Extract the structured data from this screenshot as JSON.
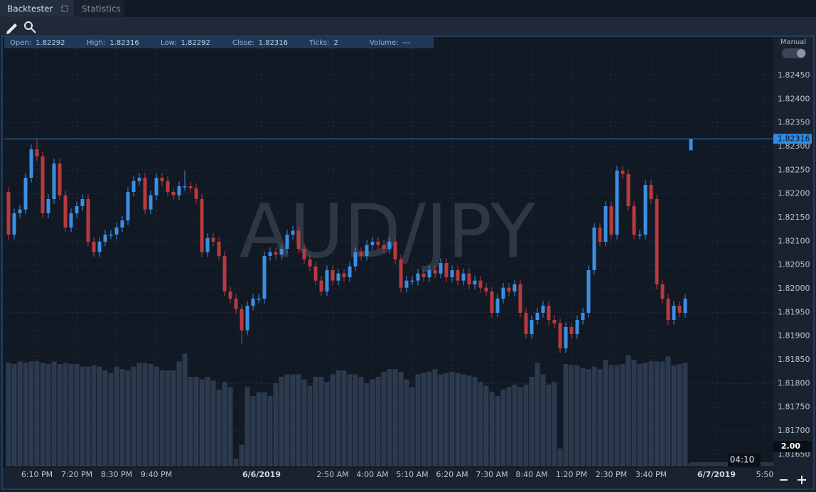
{
  "ui": {
    "tabs": [
      "Backtester",
      "Statistics"
    ],
    "mode": "Manual",
    "info_bar": [
      {
        "label": "Open:",
        "value": 1.82292
      },
      {
        "label": "High:",
        "value": 1.82316
      },
      {
        "label": "Low:",
        "value": 1.82292
      },
      {
        "label": "Close:",
        "value": 1.82316
      },
      {
        "label": "Ticks:",
        "value": 2
      },
      {
        "label": "Volume:",
        "value": "---"
      }
    ],
    "scale_box": "2.00",
    "countdown": "04:10"
  },
  "chart_data": {
    "type": "candlestick",
    "title": "AUD/JPY",
    "open": [
      1.82204,
      1.82114,
      1.82159,
      1.82167,
      1.82234,
      1.82294,
      1.82279,
      1.82159,
      1.82189,
      1.82264,
      1.82197,
      1.82129,
      1.82159,
      1.82174,
      1.82189,
      1.82099,
      1.82077,
      1.82099,
      1.82114,
      1.82114,
      1.82129,
      1.82144,
      1.82204,
      1.82227,
      1.82234,
      1.82167,
      1.82197,
      1.82234,
      1.82227,
      1.82204,
      1.82197,
      1.82216,
      1.82216,
      1.82212,
      1.82189,
      1.82077,
      1.82107,
      1.82099,
      1.82069,
      1.81994,
      1.81979,
      1.81957,
      1.81912,
      1.81964,
      1.81979,
      1.81979,
      1.82069,
      1.82077,
      1.82072,
      1.82084,
      1.82114,
      1.82122,
      1.82084,
      1.82062,
      1.82047,
      1.82017,
      1.81994,
      1.82039,
      1.82017,
      1.82032,
      1.82024,
      1.82047,
      1.82077,
      1.82069,
      1.82092,
      1.82099,
      1.82092,
      1.82084,
      1.82099,
      1.82062,
      1.82002,
      1.82017,
      1.82017,
      1.82032,
      1.82024,
      1.82039,
      1.82032,
      1.82054,
      1.82024,
      1.82039,
      1.82017,
      1.82032,
      1.82009,
      1.82017,
      1.82002,
      1.81994,
      1.81949,
      1.81979,
      1.82002,
      1.81994,
      1.82009,
      1.81949,
      1.81904,
      1.81934,
      1.81949,
      1.81964,
      1.81934,
      1.81927,
      1.81874,
      1.81919,
      1.81904,
      1.81934,
      1.81949,
      1.82039,
      1.82129,
      1.82099,
      1.82174,
      1.82114,
      1.82249,
      1.82242,
      1.82174,
      1.82114,
      1.82114,
      1.82219,
      1.82189,
      1.82009,
      1.81979,
      1.81934,
      1.81964,
      1.81949,
      1.82292
    ],
    "high": [
      1.82214,
      1.82169,
      1.82177,
      1.82244,
      1.82304,
      1.82316,
      1.82289,
      1.82199,
      1.82274,
      1.82274,
      1.82207,
      1.82169,
      1.82184,
      1.82199,
      1.82199,
      1.82109,
      1.82109,
      1.82124,
      1.82124,
      1.82139,
      1.82154,
      1.82214,
      1.82237,
      1.82244,
      1.82244,
      1.82207,
      1.82244,
      1.82244,
      1.82237,
      1.82214,
      1.82226,
      1.82249,
      1.82226,
      1.82222,
      1.82199,
      1.82117,
      1.82117,
      1.82109,
      1.82079,
      1.82004,
      1.81989,
      1.81967,
      1.81974,
      1.81989,
      1.81989,
      1.82079,
      1.82087,
      1.82087,
      1.82094,
      1.82124,
      1.82132,
      1.82132,
      1.82094,
      1.82072,
      1.82057,
      1.82027,
      1.82049,
      1.82049,
      1.82042,
      1.82042,
      1.82057,
      1.82087,
      1.82087,
      1.82102,
      1.82109,
      1.82109,
      1.82102,
      1.82109,
      1.82109,
      1.82072,
      1.82027,
      1.82027,
      1.82042,
      1.82042,
      1.82049,
      1.82049,
      1.82064,
      1.82064,
      1.82049,
      1.82049,
      1.82042,
      1.82042,
      1.82027,
      1.82027,
      1.82012,
      1.82004,
      1.81989,
      1.82012,
      1.82012,
      1.82019,
      1.82019,
      1.81959,
      1.81944,
      1.81959,
      1.81974,
      1.81974,
      1.81944,
      1.81937,
      1.81929,
      1.81929,
      1.81944,
      1.81959,
      1.82049,
      1.82139,
      1.82139,
      1.82184,
      1.82184,
      1.82259,
      1.82259,
      1.82252,
      1.82184,
      1.82124,
      1.82229,
      1.82229,
      1.82199,
      1.82019,
      1.81989,
      1.81974,
      1.81974,
      1.81989,
      1.82316
    ],
    "low": [
      1.82104,
      1.82104,
      1.82149,
      1.82157,
      1.82224,
      1.82269,
      1.82149,
      1.82149,
      1.82179,
      1.82187,
      1.82119,
      1.82119,
      1.82149,
      1.82164,
      1.82089,
      1.82067,
      1.82067,
      1.82089,
      1.82104,
      1.82104,
      1.82119,
      1.82134,
      1.82194,
      1.82217,
      1.82157,
      1.82157,
      1.82187,
      1.82217,
      1.82194,
      1.82187,
      1.82187,
      1.82206,
      1.82202,
      1.82179,
      1.82067,
      1.82067,
      1.82089,
      1.82059,
      1.81984,
      1.81969,
      1.81947,
      1.81882,
      1.81902,
      1.81954,
      1.81969,
      1.81969,
      1.82059,
      1.82062,
      1.82062,
      1.82074,
      1.82104,
      1.82074,
      1.82052,
      1.82037,
      1.82007,
      1.81984,
      1.81984,
      1.82007,
      1.82007,
      1.82014,
      1.82014,
      1.82037,
      1.82059,
      1.82059,
      1.82082,
      1.82082,
      1.82074,
      1.82074,
      1.82052,
      1.81992,
      1.81992,
      1.82007,
      1.82007,
      1.82014,
      1.82014,
      1.82022,
      1.82022,
      1.82014,
      1.82014,
      1.82007,
      1.82007,
      1.81999,
      1.81999,
      1.81992,
      1.81984,
      1.81939,
      1.81939,
      1.81969,
      1.81984,
      1.81984,
      1.81939,
      1.81894,
      1.81894,
      1.81924,
      1.81939,
      1.81924,
      1.81917,
      1.81864,
      1.81864,
      1.81894,
      1.81894,
      1.81924,
      1.81939,
      1.82029,
      1.82089,
      1.82089,
      1.82104,
      1.82104,
      1.82232,
      1.82164,
      1.82104,
      1.82104,
      1.82104,
      1.82179,
      1.81999,
      1.81969,
      1.81924,
      1.81924,
      1.81939,
      1.81939,
      1.82292
    ],
    "close": [
      1.82114,
      1.82159,
      1.82167,
      1.82234,
      1.82294,
      1.82279,
      1.82159,
      1.82189,
      1.82264,
      1.82197,
      1.82129,
      1.82159,
      1.82174,
      1.82189,
      1.82099,
      1.82077,
      1.82099,
      1.82114,
      1.82114,
      1.82129,
      1.82144,
      1.82204,
      1.82227,
      1.82234,
      1.82167,
      1.82197,
      1.82234,
      1.82227,
      1.82204,
      1.82197,
      1.82216,
      1.82216,
      1.82212,
      1.82189,
      1.82077,
      1.82107,
      1.82099,
      1.82069,
      1.81994,
      1.81979,
      1.81957,
      1.81912,
      1.81964,
      1.81979,
      1.81979,
      1.82069,
      1.82077,
      1.82072,
      1.82084,
      1.82114,
      1.82122,
      1.82084,
      1.82062,
      1.82047,
      1.82017,
      1.81994,
      1.82039,
      1.82017,
      1.82032,
      1.82024,
      1.82047,
      1.82077,
      1.82069,
      1.82092,
      1.82099,
      1.82092,
      1.82084,
      1.82099,
      1.82062,
      1.82002,
      1.82017,
      1.82017,
      1.82032,
      1.82024,
      1.82039,
      1.82032,
      1.82054,
      1.82024,
      1.82039,
      1.82017,
      1.82032,
      1.82009,
      1.82017,
      1.82002,
      1.81994,
      1.81949,
      1.81979,
      1.82002,
      1.81994,
      1.82009,
      1.81949,
      1.81904,
      1.81934,
      1.81949,
      1.81964,
      1.81934,
      1.81927,
      1.81874,
      1.81919,
      1.81904,
      1.81934,
      1.81949,
      1.82039,
      1.82129,
      1.82099,
      1.82174,
      1.82114,
      1.82249,
      1.82242,
      1.82174,
      1.82114,
      1.82114,
      1.82219,
      1.82189,
      1.82009,
      1.81979,
      1.81934,
      1.81964,
      1.81949,
      1.81979,
      1.82316
    ],
    "volume": [
      81,
      80,
      82,
      81,
      82,
      82,
      81,
      80,
      82,
      80,
      81,
      80,
      80,
      78,
      78,
      79,
      78,
      75,
      73,
      78,
      76,
      75,
      78,
      81,
      81,
      80,
      78,
      75,
      75,
      75,
      82,
      88,
      70,
      70,
      68,
      70,
      67,
      60,
      66,
      62,
      6,
      17,
      62,
      55,
      58,
      58,
      55,
      65,
      70,
      72,
      72,
      72,
      68,
      63,
      70,
      70,
      66,
      72,
      75,
      75,
      72,
      72,
      70,
      65,
      68,
      70,
      74,
      76,
      76,
      74,
      68,
      62,
      72,
      73,
      74,
      76,
      72,
      73,
      74,
      73,
      72,
      71,
      70,
      66,
      63,
      58,
      55,
      60,
      62,
      64,
      62,
      64,
      70,
      81,
      72,
      64,
      66,
      14,
      80,
      79,
      79,
      77,
      76,
      78,
      76,
      83,
      79,
      79,
      80,
      87,
      83,
      80,
      81,
      82,
      82,
      82,
      86,
      79,
      80,
      81,
      2
    ],
    "up_color": "#3b8fe3",
    "down_color": "#b93a3e",
    "volume_color": "#2c3a4e",
    "last_price": 1.82316,
    "xlim": [
      -1.5,
      134.5
    ],
    "xticks": [
      {
        "value": 5,
        "label": "6:10 PM"
      },
      {
        "value": 12,
        "label": "7:20 PM"
      },
      {
        "value": 19,
        "label": "8:30 PM"
      },
      {
        "value": 26,
        "label": "9:40 PM"
      },
      {
        "value": 44.5,
        "label": "6/6/2019"
      },
      {
        "value": 57,
        "label": "2:50 AM"
      },
      {
        "value": 64,
        "label": "4:00 AM"
      },
      {
        "value": 71,
        "label": "5:10 AM"
      },
      {
        "value": 78,
        "label": "6:20 AM"
      },
      {
        "value": 85,
        "label": "7:30 AM"
      },
      {
        "value": 92,
        "label": "8:40 AM"
      },
      {
        "value": 99,
        "label": "1:20 PM"
      },
      {
        "value": 106,
        "label": "2:30 PM"
      },
      {
        "value": 113,
        "label": "3:40 PM"
      },
      {
        "value": 124.5,
        "label": "6/7/2019"
      },
      {
        "value": 133,
        "label": "5:50"
      }
    ],
    "ylim": [
      1.81625,
      1.82507
    ],
    "yticks": [
      {
        "value": 1.8165,
        "label": "1.81650"
      },
      {
        "value": 1.817,
        "label": "1.81700"
      },
      {
        "value": 1.8175,
        "label": "1.81750"
      },
      {
        "value": 1.818,
        "label": "1.81800"
      },
      {
        "value": 1.8185,
        "label": "1.81850"
      },
      {
        "value": 1.819,
        "label": "1.81900"
      },
      {
        "value": 1.8195,
        "label": "1.81950"
      },
      {
        "value": 1.82,
        "label": "1.82000"
      },
      {
        "value": 1.8205,
        "label": "1.82050"
      },
      {
        "value": 1.821,
        "label": "1.82100"
      },
      {
        "value": 1.8215,
        "label": "1.82150"
      },
      {
        "value": 1.822,
        "label": "1.82200"
      },
      {
        "value": 1.8225,
        "label": "1.82250"
      },
      {
        "value": 1.823,
        "label": "1.82300"
      },
      {
        "value": 1.8235,
        "label": "1.82350"
      },
      {
        "value": 1.824,
        "label": "1.82400"
      },
      {
        "value": 1.8245,
        "label": "1.82450"
      }
    ],
    "y2lim": [
      0,
      100
    ],
    "grid": true
  }
}
